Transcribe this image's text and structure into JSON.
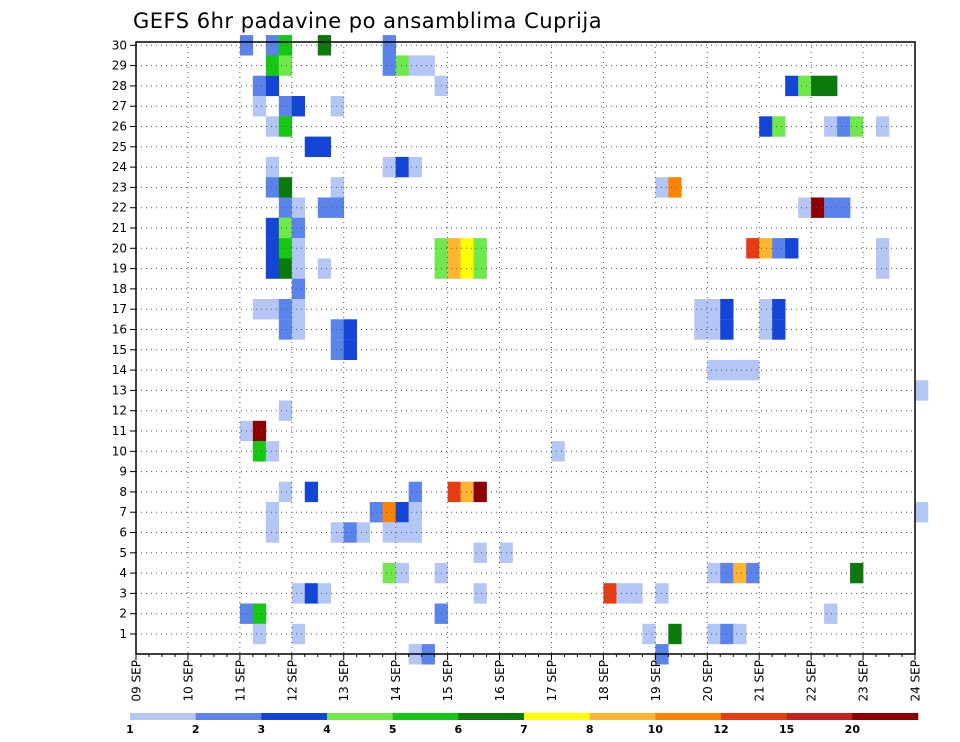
{
  "chart_data": {
    "type": "heatmap",
    "title": "GEFS 6hr padavine po ansamblima Cuprija",
    "xlabel": "",
    "ylabel": "",
    "x_ticks": [
      "09 SEP",
      "10 SEP",
      "11 SEP",
      "12 SEP",
      "13 SEP",
      "14 SEP",
      "15 SEP",
      "16 SEP",
      "17 SEP",
      "18 SEP",
      "19 SEP",
      "20 SEP",
      "21 SEP",
      "22 SEP",
      "23 SEP",
      "24 SEP"
    ],
    "x_range_days": [
      0,
      15
    ],
    "x_step_hours": 6,
    "y_ticks": [
      1,
      2,
      3,
      4,
      5,
      6,
      7,
      8,
      9,
      10,
      11,
      12,
      13,
      14,
      15,
      16,
      17,
      18,
      19,
      20,
      21,
      22,
      23,
      24,
      25,
      26,
      27,
      28,
      29,
      30
    ],
    "y_range": [
      0,
      30
    ],
    "grid": true,
    "colorbar": {
      "levels": [
        "1",
        "2",
        "3",
        "4",
        "5",
        "6",
        "7",
        "8",
        "10",
        "12",
        "15",
        "20"
      ],
      "colors": [
        "#b4c6f5",
        "#5a84ec",
        "#1346d8",
        "#6ee84a",
        "#14c814",
        "#0a7a0a",
        "#ffff00",
        "#ffb432",
        "#ff8200",
        "#e63c14",
        "#c81e1e",
        "#8c0000"
      ]
    },
    "series_cells": [
      {
        "member": 30,
        "x": [
          [
            8,
            1
          ],
          [
            10,
            1
          ],
          [
            11,
            4
          ],
          [
            14,
            5
          ],
          [
            19,
            1
          ]
        ]
      },
      {
        "member": 29,
        "x": [
          [
            10,
            4
          ],
          [
            11,
            3
          ],
          [
            19,
            1
          ],
          [
            20,
            3
          ],
          [
            21,
            0
          ],
          [
            22,
            0
          ]
        ]
      },
      {
        "member": 28,
        "x": [
          [
            9,
            1
          ],
          [
            10,
            2
          ],
          [
            23,
            0
          ],
          [
            50,
            2
          ],
          [
            51,
            3
          ],
          [
            52,
            5
          ],
          [
            53,
            5
          ]
        ]
      },
      {
        "member": 27,
        "x": [
          [
            9,
            0
          ],
          [
            11,
            1
          ],
          [
            12,
            2
          ],
          [
            15,
            0
          ]
        ]
      },
      {
        "member": 26,
        "x": [
          [
            10,
            0
          ],
          [
            11,
            4
          ],
          [
            48,
            2
          ],
          [
            49,
            3
          ],
          [
            53,
            0
          ],
          [
            54,
            1
          ],
          [
            55,
            3
          ],
          [
            57,
            0
          ]
        ]
      },
      {
        "member": 25,
        "x": [
          [
            13,
            2
          ],
          [
            14,
            2
          ]
        ]
      },
      {
        "member": 24,
        "x": [
          [
            10,
            0
          ],
          [
            19,
            0
          ],
          [
            20,
            2
          ],
          [
            21,
            0
          ]
        ]
      },
      {
        "member": 23,
        "x": [
          [
            10,
            1
          ],
          [
            11,
            5
          ],
          [
            15,
            0
          ],
          [
            40,
            0
          ],
          [
            41,
            8
          ]
        ]
      },
      {
        "member": 22,
        "x": [
          [
            11,
            1
          ],
          [
            12,
            0
          ],
          [
            14,
            1
          ],
          [
            15,
            1
          ],
          [
            51,
            0
          ],
          [
            52,
            11
          ],
          [
            53,
            1
          ],
          [
            54,
            1
          ]
        ]
      },
      {
        "member": 21,
        "x": [
          [
            10,
            2
          ],
          [
            11,
            3
          ],
          [
            12,
            1
          ]
        ]
      },
      {
        "member": 20,
        "x": [
          [
            10,
            2
          ],
          [
            11,
            4
          ],
          [
            12,
            0
          ],
          [
            23,
            3
          ],
          [
            24,
            7
          ],
          [
            25,
            6
          ],
          [
            26,
            3
          ],
          [
            47,
            9
          ],
          [
            48,
            7
          ],
          [
            49,
            1
          ],
          [
            50,
            2
          ],
          [
            57,
            0
          ]
        ]
      },
      {
        "member": 19,
        "x": [
          [
            10,
            2
          ],
          [
            11,
            5
          ],
          [
            12,
            0
          ],
          [
            14,
            0
          ],
          [
            23,
            3
          ],
          [
            24,
            7
          ],
          [
            25,
            6
          ],
          [
            26,
            3
          ],
          [
            57,
            0
          ]
        ]
      },
      {
        "member": 18,
        "x": [
          [
            12,
            1
          ]
        ]
      },
      {
        "member": 17,
        "x": [
          [
            9,
            0
          ],
          [
            10,
            0
          ],
          [
            11,
            1
          ],
          [
            12,
            0
          ],
          [
            43,
            0
          ],
          [
            44,
            0
          ],
          [
            45,
            2
          ],
          [
            48,
            0
          ],
          [
            49,
            2
          ]
        ]
      },
      {
        "member": 16,
        "x": [
          [
            11,
            1
          ],
          [
            12,
            0
          ],
          [
            15,
            1
          ],
          [
            16,
            2
          ],
          [
            43,
            0
          ],
          [
            44,
            0
          ],
          [
            45,
            2
          ],
          [
            48,
            0
          ],
          [
            49,
            2
          ]
        ]
      },
      {
        "member": 15,
        "x": [
          [
            15,
            1
          ],
          [
            16,
            2
          ]
        ]
      },
      {
        "member": 14,
        "x": [
          [
            44,
            0
          ],
          [
            45,
            0
          ],
          [
            46,
            0
          ],
          [
            47,
            0
          ]
        ]
      },
      {
        "member": 13,
        "x": [
          [
            60,
            0
          ]
        ]
      },
      {
        "member": 12,
        "x": [
          [
            11,
            0
          ]
        ]
      },
      {
        "member": 11,
        "x": [
          [
            8,
            0
          ],
          [
            9,
            11
          ]
        ]
      },
      {
        "member": 10,
        "x": [
          [
            9,
            4
          ],
          [
            10,
            0
          ],
          [
            32,
            0
          ]
        ]
      },
      {
        "member": 9,
        "x": []
      },
      {
        "member": 8,
        "x": [
          [
            11,
            0
          ],
          [
            13,
            2
          ],
          [
            21,
            1
          ],
          [
            24,
            9
          ],
          [
            25,
            7
          ],
          [
            26,
            11
          ]
        ]
      },
      {
        "member": 7,
        "x": [
          [
            10,
            0
          ],
          [
            18,
            1
          ],
          [
            19,
            8
          ],
          [
            20,
            2
          ],
          [
            21,
            0
          ],
          [
            60,
            0
          ]
        ]
      },
      {
        "member": 6,
        "x": [
          [
            10,
            0
          ],
          [
            15,
            0
          ],
          [
            16,
            1
          ],
          [
            17,
            0
          ],
          [
            19,
            0
          ],
          [
            20,
            0
          ],
          [
            21,
            0
          ]
        ]
      },
      {
        "member": 5,
        "x": [
          [
            26,
            0
          ],
          [
            28,
            0
          ]
        ]
      },
      {
        "member": 4,
        "x": [
          [
            19,
            3
          ],
          [
            20,
            0
          ],
          [
            23,
            0
          ],
          [
            44,
            0
          ],
          [
            45,
            1
          ],
          [
            46,
            7
          ],
          [
            47,
            1
          ],
          [
            55,
            5
          ]
        ]
      },
      {
        "member": 3,
        "x": [
          [
            12,
            0
          ],
          [
            13,
            2
          ],
          [
            14,
            0
          ],
          [
            26,
            0
          ],
          [
            36,
            9
          ],
          [
            37,
            0
          ],
          [
            38,
            0
          ],
          [
            40,
            0
          ]
        ]
      },
      {
        "member": 2,
        "x": [
          [
            8,
            1
          ],
          [
            9,
            4
          ],
          [
            23,
            1
          ],
          [
            53,
            0
          ]
        ]
      },
      {
        "member": 1,
        "x": [
          [
            9,
            0
          ],
          [
            12,
            0
          ],
          [
            39,
            0
          ],
          [
            41,
            5
          ],
          [
            44,
            0
          ],
          [
            45,
            1
          ],
          [
            46,
            0
          ]
        ]
      },
      {
        "member": 0,
        "x": [
          [
            21,
            0
          ],
          [
            22,
            1
          ],
          [
            40,
            1
          ]
        ]
      }
    ]
  }
}
